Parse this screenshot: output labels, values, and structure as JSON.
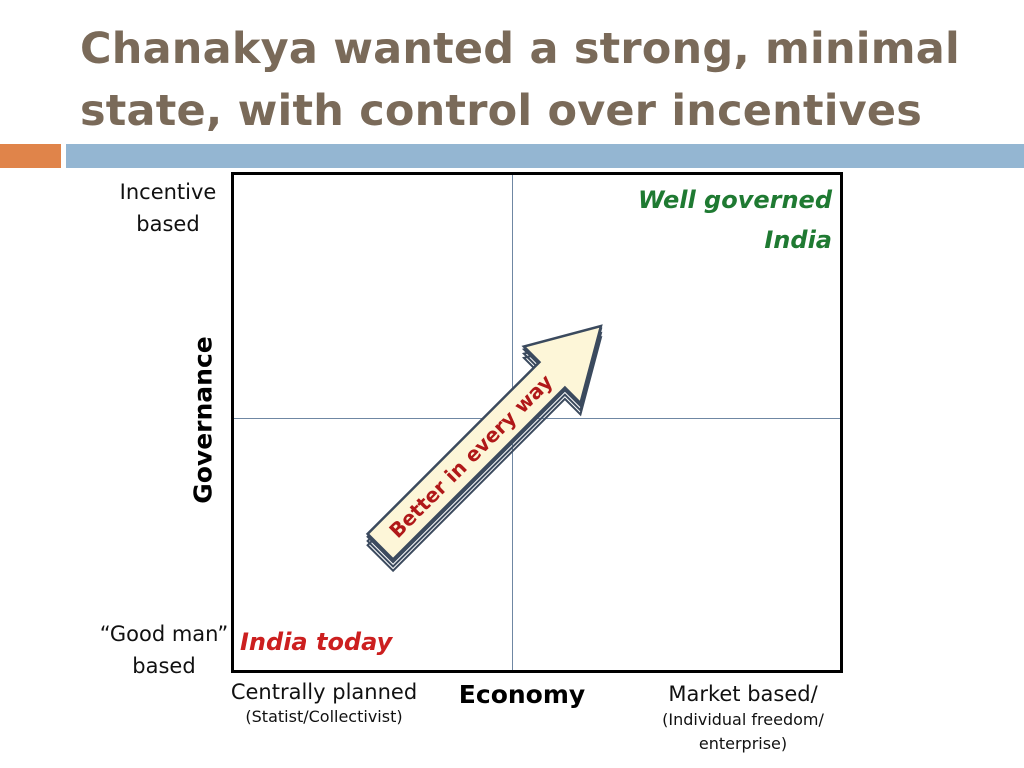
{
  "slide": {
    "title_line1": "Chanakya wanted a strong, minimal",
    "title_line2": "state, with control over incentives"
  },
  "diagram": {
    "y_axis_label": "Governance",
    "y_top_label_line1": "Incentive",
    "y_top_label_line2": "based",
    "y_bottom_label_line1": "“Good man”",
    "y_bottom_label_line2": "based",
    "x_axis_label": "Economy",
    "x_left_main": "Centrally planned",
    "x_left_sub": "(Statist/Collectivist)",
    "x_right_main": "Market based/",
    "x_right_sub_line1": "(Individual freedom/",
    "x_right_sub_line2": "enterprise)",
    "quadrant_top_right_line1": "Well governed",
    "quadrant_top_right_line2": "India",
    "quadrant_bottom_left": "India today",
    "arrow_label": "Better in every way"
  },
  "colors": {
    "title": "#7a6a59",
    "accent_orange": "#e0844a",
    "accent_blue": "#94b6d2",
    "well_governed": "#1f7a32",
    "india_today": "#cc1f1f",
    "arrow_fill": "#fdf6d8",
    "arrow_outline": "#3b4a5e",
    "arrow_text": "#b01818"
  }
}
